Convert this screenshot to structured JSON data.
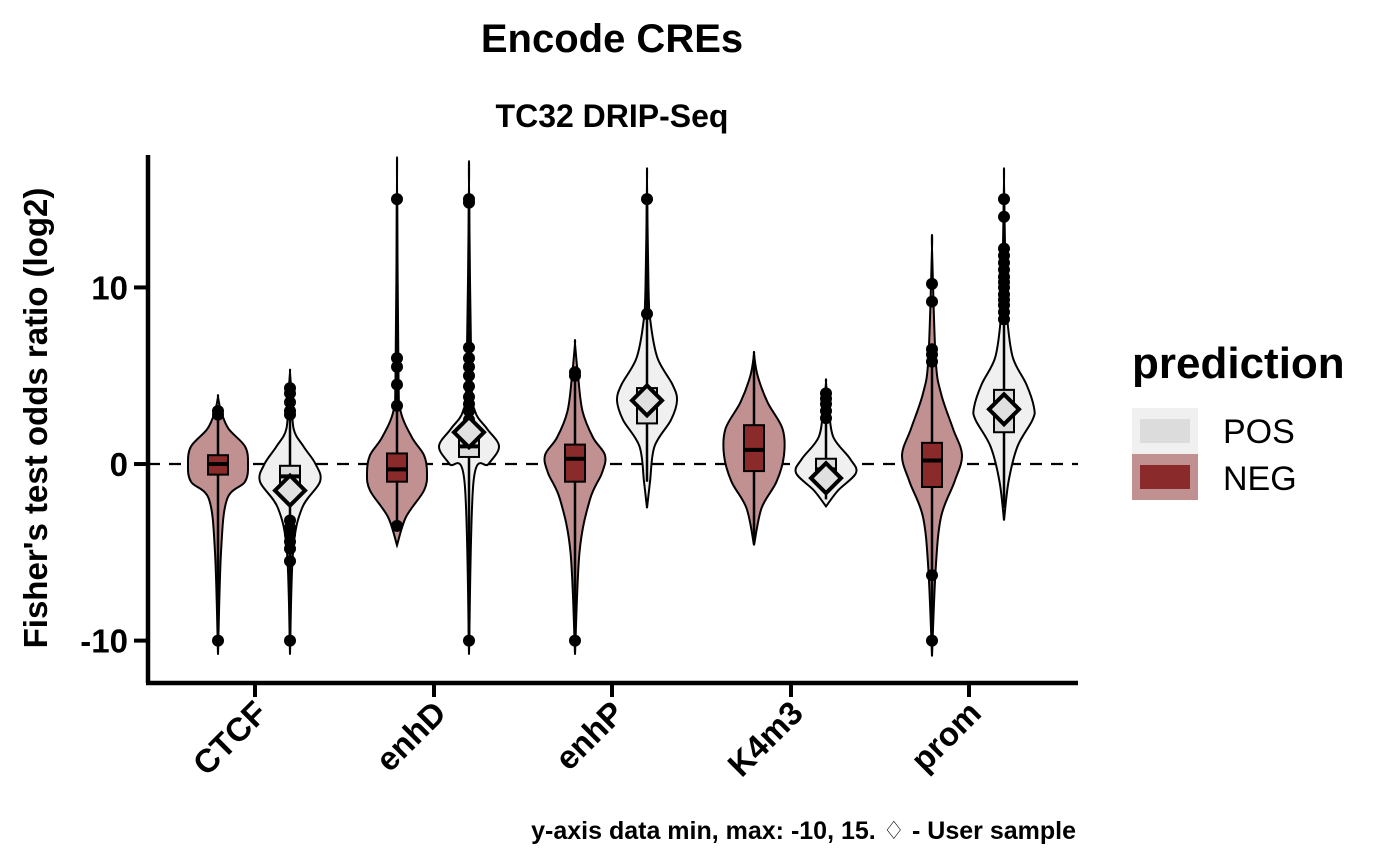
{
  "chart_data": {
    "type": "violin",
    "title": "Encode CREs",
    "subtitle": "TC32 DRIP-Seq",
    "ylabel": "Fisher's test odds ratio (log2)",
    "xlabel": "",
    "caption": "y-axis data min, max: -10, 15. ♢ - User sample",
    "ylim": [
      -12.4,
      17.5
    ],
    "yticks": [
      -10,
      0,
      10
    ],
    "ytick_labels": [
      "-10",
      "0",
      "10"
    ],
    "reference_line": 0,
    "grid": false,
    "categories": [
      "CTCF",
      "enhD",
      "enhP",
      "K4m3",
      "prom"
    ],
    "legend": {
      "title": "prediction",
      "position": "right",
      "entries": [
        {
          "label": "POS",
          "fill": "#f0f0f0",
          "fill_outer": "#f0f0f0",
          "fill_inner": "#dcdcdc"
        },
        {
          "label": "NEG",
          "fill": "#c19090",
          "fill_outer": "#c19090",
          "fill_inner": "#8b2a2a"
        }
      ]
    },
    "colors": {
      "NEG_violin": "#c19090",
      "NEG_box": "#8b2a2a",
      "POS_violin": "#f0f0f0",
      "POS_box": "#dcdcdc",
      "user_marker": "#e0e0e0"
    },
    "series": [
      {
        "name": "NEG",
        "groups": [
          {
            "category": "CTCF",
            "q1": -0.6,
            "median": 0.0,
            "q3": 0.5,
            "whisker_low": -10,
            "whisker_high": 3.0,
            "user_sample": null,
            "outliers": [
              2.8,
              3.0,
              -10
            ],
            "violin": [
              [
                -10.8,
                0
              ],
              [
                -5,
                0.1
              ],
              [
                -2,
                0.3
              ],
              [
                -1,
                0.9
              ],
              [
                0,
                1.0
              ],
              [
                1,
                0.9
              ],
              [
                2,
                0.35
              ],
              [
                3,
                0.1
              ],
              [
                3.8,
                0
              ]
            ]
          },
          {
            "category": "enhD",
            "q1": -1.0,
            "median": -0.3,
            "q3": 0.6,
            "whisker_low": -3.6,
            "whisker_high": 15,
            "user_sample": null,
            "outliers": [
              15,
              6.0,
              5.5,
              4.5,
              3.3,
              -3.5
            ],
            "violin": [
              [
                -4.6,
                0
              ],
              [
                -3,
                0.3
              ],
              [
                -1.5,
                0.9
              ],
              [
                -0.5,
                1.0
              ],
              [
                0.5,
                0.9
              ],
              [
                1.5,
                0.5
              ],
              [
                3,
                0.12
              ],
              [
                5,
                0.05
              ],
              [
                16,
                0
              ]
            ]
          },
          {
            "category": "enhP",
            "q1": -1.0,
            "median": 0.3,
            "q3": 1.1,
            "whisker_low": -10,
            "whisker_high": 5.2,
            "user_sample": null,
            "outliers": [
              5.2,
              5.0,
              -10
            ],
            "violin": [
              [
                -10.8,
                0
              ],
              [
                -5,
                0.15
              ],
              [
                -2,
                0.5
              ],
              [
                -0.5,
                0.9
              ],
              [
                0.5,
                1.0
              ],
              [
                1.5,
                0.6
              ],
              [
                3,
                0.25
              ],
              [
                5,
                0.1
              ],
              [
                6.8,
                0
              ]
            ]
          },
          {
            "category": "K4m3",
            "q1": -0.4,
            "median": 0.8,
            "q3": 2.2,
            "whisker_low": -4.5,
            "whisker_high": 6.2,
            "user_sample": null,
            "outliers": [],
            "violin": [
              [
                -4.6,
                0
              ],
              [
                -2.5,
                0.25
              ],
              [
                -1,
                0.75
              ],
              [
                0.5,
                1.0
              ],
              [
                2,
                0.95
              ],
              [
                3.5,
                0.45
              ],
              [
                5,
                0.12
              ],
              [
                6.2,
                0
              ]
            ]
          },
          {
            "category": "prom",
            "q1": -1.3,
            "median": 0.2,
            "q3": 1.2,
            "whisker_low": -10,
            "whisker_high": 6.0,
            "user_sample": null,
            "outliers": [
              10.2,
              9.2,
              6.5,
              6.2,
              5.8,
              -6.3,
              -10
            ],
            "violin": [
              [
                -10.9,
                0
              ],
              [
                -6,
                0.12
              ],
              [
                -3,
                0.3
              ],
              [
                -1,
                0.75
              ],
              [
                0.5,
                1.0
              ],
              [
                2,
                0.7
              ],
              [
                4,
                0.3
              ],
              [
                6,
                0.12
              ],
              [
                12.2,
                0
              ]
            ]
          }
        ]
      },
      {
        "name": "POS",
        "groups": [
          {
            "category": "CTCF",
            "q1": -1.3,
            "median": -0.7,
            "q3": -0.1,
            "whisker_low": -10,
            "whisker_high": 4.5,
            "user_sample": -1.5,
            "outliers": [
              4.3,
              4.0,
              3.5,
              3.0,
              2.8,
              -3.2,
              -3.6,
              -4.0,
              -4.4,
              -4.8,
              -5.5,
              -10
            ],
            "violin": [
              [
                -10.8,
                0
              ],
              [
                -5,
                0.1
              ],
              [
                -2.5,
                0.4
              ],
              [
                -1,
                1.0
              ],
              [
                0,
                0.85
              ],
              [
                1,
                0.45
              ],
              [
                2,
                0.12
              ],
              [
                4,
                0.05
              ],
              [
                5.2,
                0
              ]
            ]
          },
          {
            "category": "enhD",
            "q1": 0.4,
            "median": 1.0,
            "q3": 1.8,
            "whisker_low": -10,
            "whisker_high": 15,
            "user_sample": 1.8,
            "outliers": [
              15,
              14.8,
              6.6,
              6.0,
              5.5,
              5.0,
              4.4,
              3.8,
              3.4,
              3.0,
              2.5,
              -10
            ],
            "violin": [
              [
                -10.8,
                0
              ],
              [
                -1,
                0.15
              ],
              [
                0,
                0.65
              ],
              [
                1,
                1.0
              ],
              [
                2,
                0.6
              ],
              [
                3,
                0.2
              ],
              [
                5,
                0.08
              ],
              [
                15.8,
                0
              ]
            ]
          },
          {
            "category": "enhP",
            "q1": 2.3,
            "median": 3.6,
            "q3": 4.3,
            "whisker_low": -1.0,
            "whisker_high": 15,
            "user_sample": 3.6,
            "outliers": [
              15,
              8.5
            ],
            "violin": [
              [
                -2.5,
                0
              ],
              [
                -1,
                0.1
              ],
              [
                1,
                0.25
              ],
              [
                2.5,
                0.8
              ],
              [
                3.6,
                1.0
              ],
              [
                4.5,
                0.85
              ],
              [
                6,
                0.35
              ],
              [
                8,
                0.12
              ],
              [
                10,
                0.05
              ],
              [
                16,
                0
              ]
            ]
          },
          {
            "category": "K4m3",
            "q1": -0.7,
            "median": -0.3,
            "q3": 0.3,
            "whisker_low": -2.0,
            "whisker_high": 2.5,
            "user_sample": -0.8,
            "outliers": [
              4.0,
              3.7,
              3.4,
              3.0,
              2.6
            ],
            "violin": [
              [
                -2.4,
                0
              ],
              [
                -1.5,
                0.4
              ],
              [
                -0.5,
                1.0
              ],
              [
                0.3,
                0.8
              ],
              [
                1.5,
                0.25
              ],
              [
                3,
                0.1
              ],
              [
                4.6,
                0
              ]
            ]
          },
          {
            "category": "prom",
            "q1": 1.8,
            "median": 3.0,
            "q3": 4.2,
            "whisker_low": -2.5,
            "whisker_high": 15,
            "user_sample": 3.1,
            "outliers": [
              15,
              14,
              12.2,
              11.8,
              11.4,
              11.0,
              10.6,
              10.3,
              10.0,
              9.6,
              9.3,
              9.0,
              8.6,
              8.2
            ],
            "violin": [
              [
                -3.2,
                0
              ],
              [
                -1,
                0.15
              ],
              [
                1,
                0.45
              ],
              [
                2.5,
                0.95
              ],
              [
                3.2,
                1.0
              ],
              [
                4.5,
                0.75
              ],
              [
                6,
                0.3
              ],
              [
                8,
                0.12
              ],
              [
                10,
                0.06
              ],
              [
                16,
                0
              ]
            ]
          }
        ]
      }
    ]
  }
}
